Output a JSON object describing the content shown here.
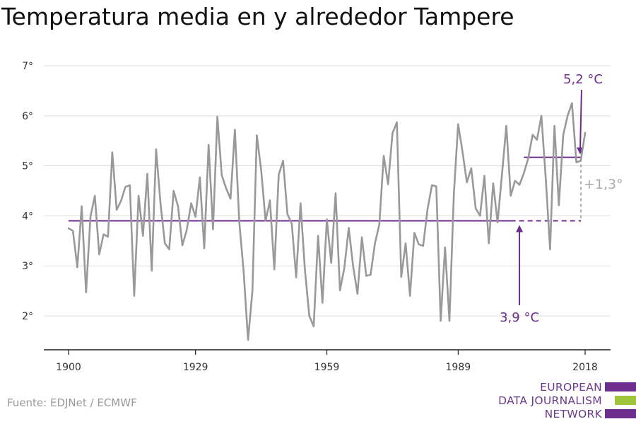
{
  "chart_data": {
    "type": "line",
    "title": "Temperatura media en y alrededor Tampere",
    "xlabel": "",
    "ylabel": "",
    "xlim": [
      1900,
      2018
    ],
    "ylim": [
      1.3,
      7.0
    ],
    "x_ticks": [
      1900,
      1929,
      1959,
      1989,
      2018
    ],
    "y_ticks": [
      2,
      3,
      4,
      5,
      6,
      7
    ],
    "y_tick_labels": [
      "2°",
      "3°",
      "4°",
      "5°",
      "6°",
      "7°"
    ],
    "grid": true,
    "legend": "none",
    "series": [
      {
        "color": "#999999",
        "x": [
          1900,
          1901,
          1902,
          1903,
          1904,
          1905,
          1906,
          1907,
          1908,
          1909,
          1910,
          1911,
          1912,
          1913,
          1914,
          1915,
          1916,
          1917,
          1918,
          1919,
          1920,
          1921,
          1922,
          1923,
          1924,
          1925,
          1926,
          1927,
          1928,
          1929,
          1930,
          1931,
          1932,
          1933,
          1934,
          1935,
          1936,
          1937,
          1938,
          1939,
          1940,
          1941,
          1942,
          1943,
          1944,
          1945,
          1946,
          1947,
          1948,
          1949,
          1950,
          1951,
          1952,
          1953,
          1954,
          1955,
          1956,
          1957,
          1958,
          1959,
          1960,
          1961,
          1962,
          1963,
          1964,
          1965,
          1966,
          1967,
          1968,
          1969,
          1970,
          1971,
          1972,
          1973,
          1974,
          1975,
          1976,
          1977,
          1978,
          1979,
          1980,
          1981,
          1982,
          1983,
          1984,
          1985,
          1986,
          1987,
          1988,
          1989,
          1990,
          1991,
          1992,
          1993,
          1994,
          1995,
          1996,
          1997,
          1998,
          1999,
          2000,
          2001,
          2002,
          2003,
          2004,
          2005,
          2006,
          2007,
          2008,
          2009,
          2010,
          2011,
          2012,
          2013,
          2014,
          2015,
          2016,
          2017,
          2018
        ],
        "y": [
          3.75,
          3.7,
          2.97,
          4.19,
          2.47,
          3.98,
          4.4,
          3.23,
          3.63,
          3.58,
          5.27,
          4.12,
          4.3,
          4.58,
          4.61,
          2.4,
          4.4,
          3.6,
          4.84,
          2.9,
          5.33,
          4.25,
          3.45,
          3.33,
          4.5,
          4.19,
          3.41,
          3.72,
          4.25,
          3.98,
          4.77,
          3.35,
          5.42,
          3.73,
          5.98,
          4.81,
          4.55,
          4.34,
          5.72,
          3.88,
          2.88,
          1.52,
          2.5,
          5.61,
          4.91,
          3.9,
          4.31,
          2.93,
          4.82,
          5.1,
          4.04,
          3.84,
          2.77,
          4.25,
          2.92,
          2.0,
          1.79,
          3.6,
          2.26,
          3.93,
          3.06,
          4.45,
          2.51,
          2.96,
          3.76,
          2.99,
          2.44,
          3.57,
          2.8,
          2.82,
          3.45,
          3.83,
          5.2,
          4.63,
          5.65,
          5.87,
          2.78,
          3.45,
          2.4,
          3.66,
          3.43,
          3.4,
          4.13,
          4.61,
          4.59,
          1.9,
          3.37,
          1.9,
          4.42,
          5.83,
          5.28,
          4.67,
          4.95,
          4.15,
          4.0,
          4.8,
          3.45,
          4.65,
          3.87,
          4.82,
          5.8,
          4.4,
          4.7,
          4.62,
          4.85,
          5.15,
          5.62,
          5.52,
          6.0,
          4.77,
          3.33,
          5.8,
          4.21,
          5.61,
          6.0,
          6.25,
          5.07,
          5.1,
          5.66
        ]
      }
    ],
    "annotations": {
      "baseline": {
        "label": "3,9 °C",
        "value": 3.9,
        "x_start": 1900,
        "x_end": 2018,
        "solid_end": 2001,
        "color": "#6c2d8c"
      },
      "recent": {
        "label": "5,2 °C",
        "value": 5.17,
        "x_start": 2004,
        "x_end": 2018,
        "color": "#6c2d8c"
      },
      "difference": {
        "label": "+1,3°",
        "color": "#aaaaaa"
      }
    }
  },
  "source": "Fuente: EDJNet / ECMWF",
  "logo": {
    "lines": [
      "EUROPEAN",
      "DATA JOURNALISM",
      "NETWORK"
    ],
    "bar_colors": [
      "#6c2d8c",
      "#9fc53a",
      "#6c2d8c"
    ]
  }
}
